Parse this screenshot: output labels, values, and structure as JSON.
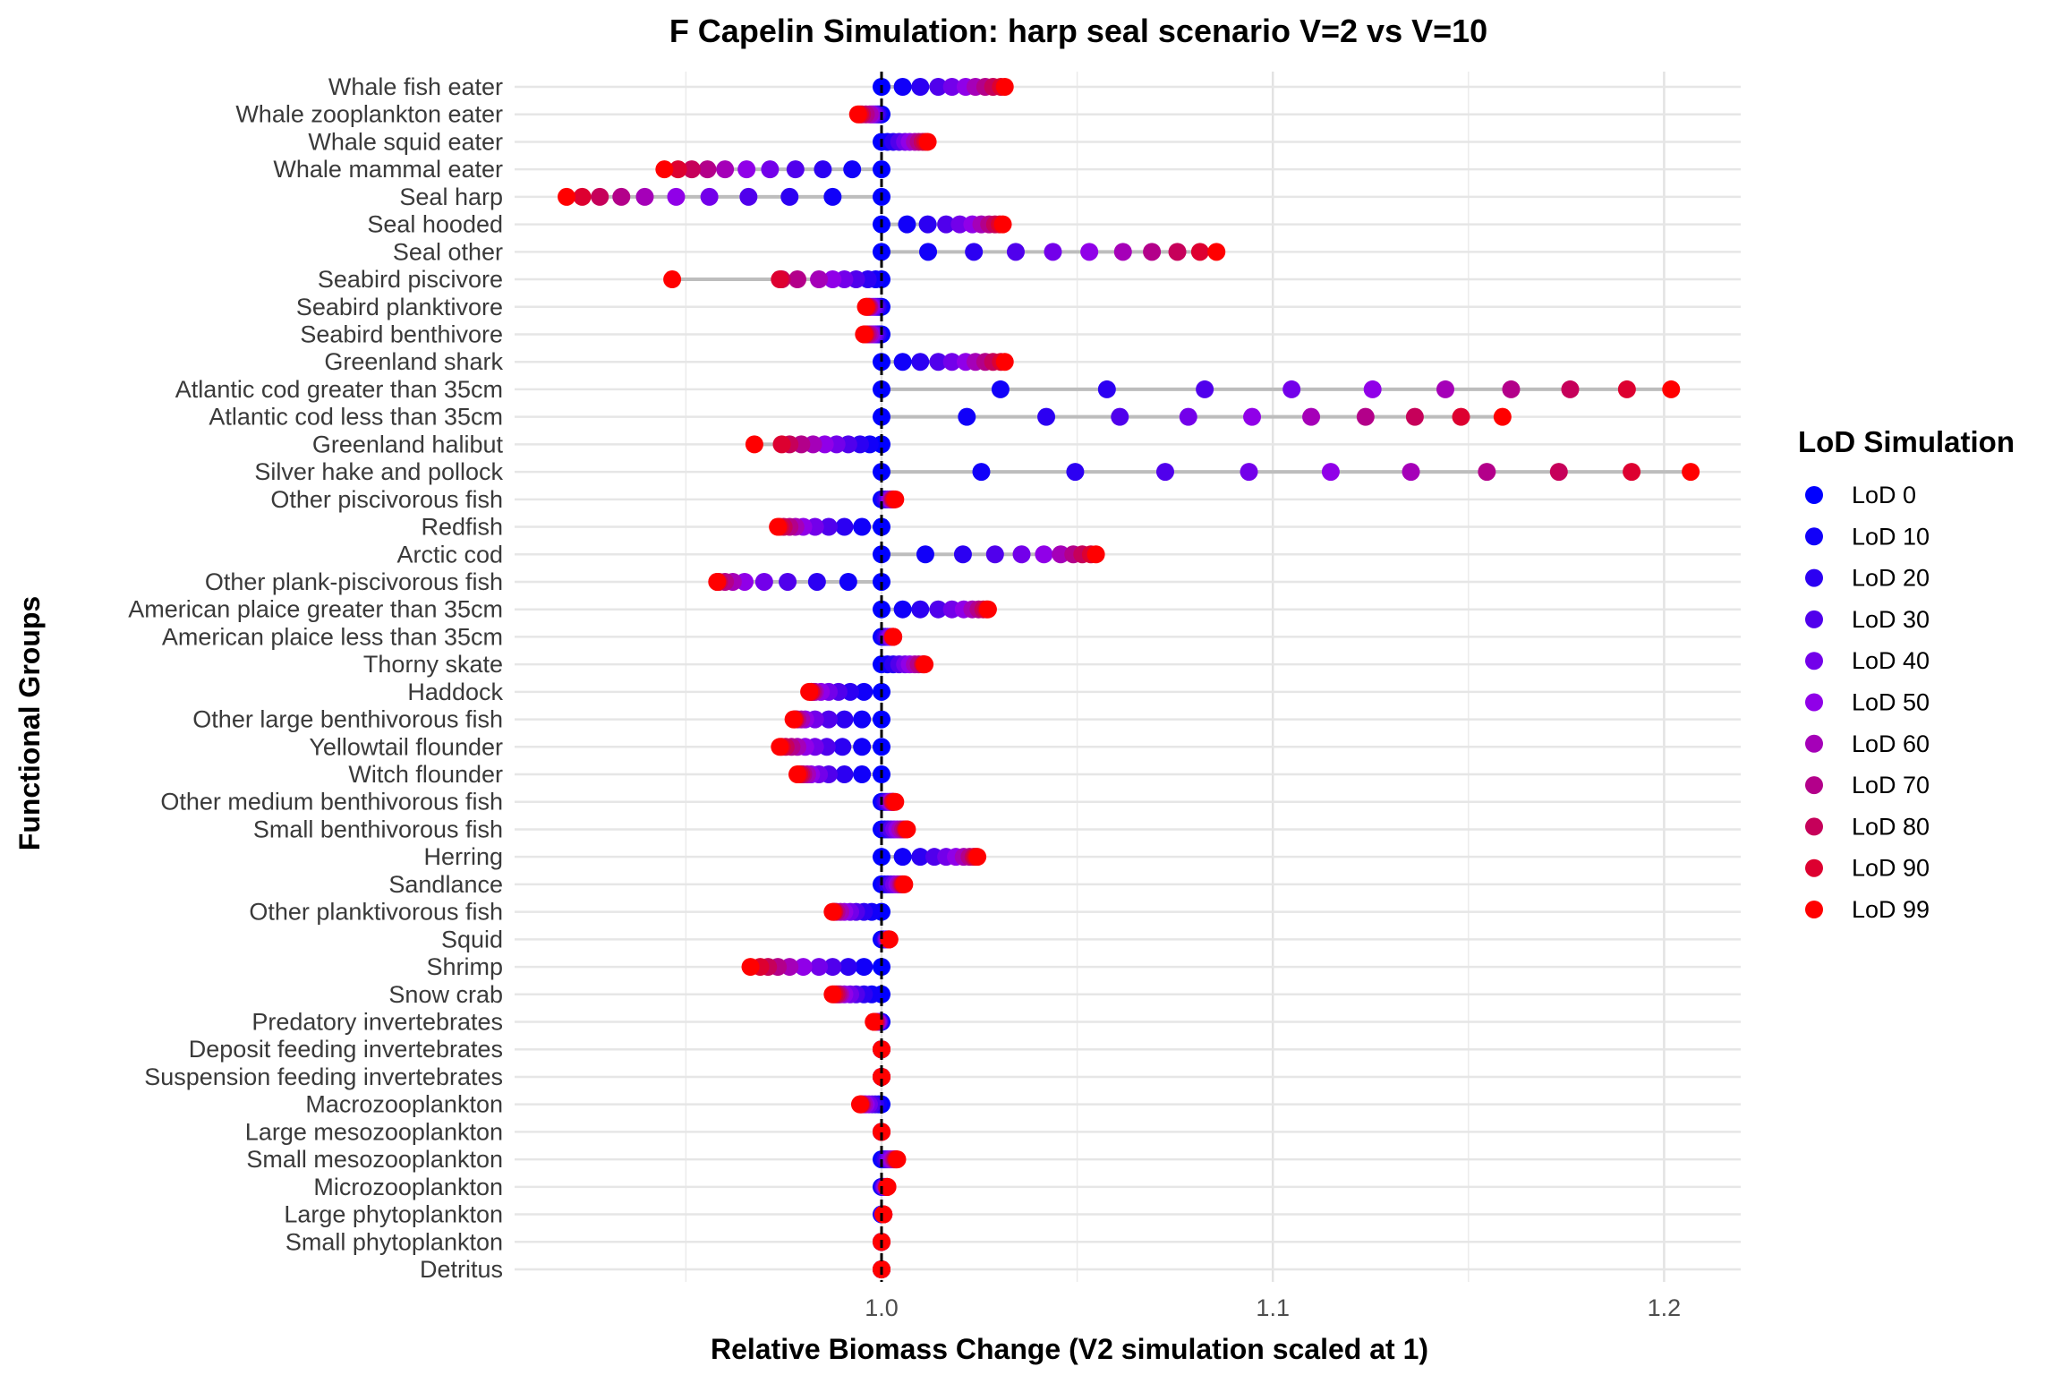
{
  "chart_data": {
    "type": "scatter",
    "title": "F Capelin Simulation: harp seal scenario V=2 vs V=10",
    "xlabel": "Relative Biomass Change (V2 simulation scaled at 1)",
    "ylabel": "Functional Groups",
    "xlim": [
      0.9,
      1.22
    ],
    "xticks": [
      1.0,
      1.1,
      1.2
    ],
    "xtick_labels": [
      "1.0",
      "1.1",
      "1.2"
    ],
    "reference_line_x": 1.0,
    "grid": true,
    "legend": {
      "title": "LoD Simulation",
      "placement": "right",
      "entries": [
        "LoD 0",
        "LoD 10",
        "LoD 20",
        "LoD 30",
        "LoD 40",
        "LoD 50",
        "LoD 60",
        "LoD 70",
        "LoD 80",
        "LoD 90",
        "LoD 99"
      ]
    },
    "series_colors": [
      "#0000ff",
      "#1100f9",
      "#2c00f2",
      "#5000ec",
      "#7300ea",
      "#9000e8",
      "#a500b8",
      "#b3008a",
      "#c6005a",
      "#dd0030",
      "#ff0000"
    ],
    "groups": [
      {
        "name": "Whale fish eater",
        "values": [
          1.0,
          1.0054,
          1.0099,
          1.0145,
          1.018,
          1.0215,
          1.024,
          1.0265,
          1.0285,
          1.0305,
          1.0315
        ]
      },
      {
        "name": "Whale zooplankton eater",
        "values": [
          1.0,
          0.9995,
          0.999,
          0.9985,
          0.998,
          0.9975,
          0.997,
          0.996,
          0.995,
          0.9945,
          0.994
        ]
      },
      {
        "name": "Whale squid eater",
        "values": [
          1.0,
          1.0015,
          1.003,
          1.0045,
          1.006,
          1.0072,
          1.0085,
          1.0095,
          1.0105,
          1.0112,
          1.0118
        ]
      },
      {
        "name": "Whale mammal eater",
        "values": [
          1.0,
          0.9925,
          0.985,
          0.978,
          0.9715,
          0.9655,
          0.96,
          0.9555,
          0.9515,
          0.948,
          0.9445
        ]
      },
      {
        "name": "Seal harp",
        "values": [
          1.0,
          0.9875,
          0.9765,
          0.966,
          0.956,
          0.9475,
          0.9395,
          0.9335,
          0.928,
          0.9235,
          0.9195
        ]
      },
      {
        "name": "Seal hooded",
        "values": [
          1.0,
          1.0065,
          1.0118,
          1.0165,
          1.02,
          1.0232,
          1.0255,
          1.0275,
          1.029,
          1.0302,
          1.031
        ]
      },
      {
        "name": "Seal other",
        "values": [
          1.0,
          1.0119,
          1.0236,
          1.0343,
          1.0438,
          1.0531,
          1.0617,
          1.0691,
          1.0756,
          1.0814,
          1.0856
        ]
      },
      {
        "name": "Seabird piscivore",
        "values": [
          1.0,
          0.9985,
          0.9965,
          0.9935,
          0.9905,
          0.9875,
          0.984,
          0.9785,
          0.9745,
          0.974,
          0.9465
        ]
      },
      {
        "name": "Seabird planktivore",
        "values": [
          1.0,
          0.9995,
          0.999,
          0.9985,
          0.998,
          0.9975,
          0.997,
          0.9968,
          0.9965,
          0.9962,
          0.996
        ]
      },
      {
        "name": "Seabird benthivore",
        "values": [
          1.0,
          0.9995,
          0.999,
          0.9985,
          0.998,
          0.9975,
          0.997,
          0.9965,
          0.996,
          0.9958,
          0.9955
        ]
      },
      {
        "name": "Greenland shark",
        "values": [
          1.0,
          1.0054,
          1.0099,
          1.0145,
          1.018,
          1.0215,
          1.024,
          1.0265,
          1.0285,
          1.0305,
          1.0315
        ]
      },
      {
        "name": "Atlantic cod greater than 35cm",
        "values": [
          1.0,
          1.0304,
          1.0576,
          1.0826,
          1.1048,
          1.1255,
          1.1441,
          1.1609,
          1.176,
          1.1905,
          1.2018
        ]
      },
      {
        "name": "Atlantic cod less than 35cm",
        "values": [
          1.0,
          1.0218,
          1.0421,
          1.0609,
          1.0784,
          1.0947,
          1.1098,
          1.1237,
          1.1363,
          1.1481,
          1.1587
        ]
      },
      {
        "name": "Greenland halibut",
        "values": [
          1.0,
          0.997,
          0.9945,
          0.9915,
          0.9885,
          0.9855,
          0.9825,
          0.9795,
          0.9765,
          0.9745,
          0.9675
        ]
      },
      {
        "name": "Silver hake and pollock",
        "values": [
          1.0,
          1.0255,
          1.0495,
          1.0725,
          1.0939,
          1.1148,
          1.1353,
          1.1547,
          1.1731,
          1.1917,
          1.2068
        ]
      },
      {
        "name": "Other piscivorous fish",
        "values": [
          1.0,
          1.0005,
          1.001,
          1.0015,
          1.002,
          1.0023,
          1.0026,
          1.0028,
          1.003,
          1.0032,
          1.0035
        ]
      },
      {
        "name": "Redfish",
        "values": [
          1.0,
          0.995,
          0.9905,
          0.9865,
          0.983,
          0.98,
          0.978,
          0.9765,
          0.975,
          0.974,
          0.9735
        ]
      },
      {
        "name": "Arctic cod",
        "values": [
          1.0,
          1.0112,
          1.0208,
          1.029,
          1.0358,
          1.0415,
          1.0458,
          1.049,
          1.0513,
          1.0535,
          1.0548
        ]
      },
      {
        "name": "Other plank-piscivorous fish",
        "values": [
          1.0,
          0.9915,
          0.9835,
          0.976,
          0.97,
          0.965,
          0.962,
          0.96,
          0.9585,
          0.958,
          0.958
        ]
      },
      {
        "name": "American plaice greater than 35cm",
        "values": [
          1.0,
          1.0054,
          1.0099,
          1.0145,
          1.018,
          1.021,
          1.0232,
          1.0248,
          1.026,
          1.0268,
          1.0272
        ]
      },
      {
        "name": "American plaice less than 35cm",
        "values": [
          1.0,
          1.0005,
          1.001,
          1.0015,
          1.002,
          1.0023,
          1.0026,
          1.0028,
          1.003,
          1.003,
          1.003
        ]
      },
      {
        "name": "Thorny skate",
        "values": [
          1.0,
          1.0015,
          1.003,
          1.0045,
          1.006,
          1.0072,
          1.0085,
          1.0095,
          1.0105,
          1.0108,
          1.011
        ]
      },
      {
        "name": "Haddock",
        "values": [
          1.0,
          0.9955,
          0.992,
          0.989,
          0.9865,
          0.9845,
          0.983,
          0.9825,
          0.982,
          0.982,
          0.9815
        ]
      },
      {
        "name": "Other large benthivorous fish",
        "values": [
          1.0,
          0.995,
          0.9905,
          0.9865,
          0.983,
          0.9805,
          0.9795,
          0.9785,
          0.978,
          0.9778,
          0.9775
        ]
      },
      {
        "name": "Yellowtail flounder",
        "values": [
          1.0,
          0.995,
          0.99,
          0.986,
          0.983,
          0.9805,
          0.9785,
          0.977,
          0.9755,
          0.9745,
          0.974
        ]
      },
      {
        "name": "Witch flounder",
        "values": [
          1.0,
          0.995,
          0.9905,
          0.9865,
          0.984,
          0.982,
          0.981,
          0.98,
          0.9795,
          0.979,
          0.9785
        ]
      },
      {
        "name": "Other medium benthivorous fish",
        "values": [
          1.0,
          1.0005,
          1.001,
          1.0015,
          1.002,
          1.0023,
          1.0026,
          1.0028,
          1.003,
          1.003,
          1.0035
        ]
      },
      {
        "name": "Small benthivorous fish",
        "values": [
          1.0,
          1.0008,
          1.0016,
          1.0024,
          1.0032,
          1.004,
          1.0048,
          1.0055,
          1.006,
          1.0063,
          1.0065
        ]
      },
      {
        "name": "Herring",
        "values": [
          1.0,
          1.0054,
          1.0099,
          1.0135,
          1.0165,
          1.019,
          1.021,
          1.0225,
          1.0235,
          1.024,
          1.0245
        ]
      },
      {
        "name": "Sandlance",
        "values": [
          1.0,
          1.0008,
          1.0016,
          1.0024,
          1.0032,
          1.004,
          1.0045,
          1.005,
          1.0053,
          1.0055,
          1.0058
        ]
      },
      {
        "name": "Other planktivorous fish",
        "values": [
          1.0,
          0.9975,
          0.9955,
          0.9935,
          0.992,
          0.9905,
          0.9895,
          0.9885,
          0.988,
          0.9878,
          0.9875
        ]
      },
      {
        "name": "Squid",
        "values": [
          1.0,
          1.0005,
          1.001,
          1.0012,
          1.0014,
          1.0016,
          1.0017,
          1.0018,
          1.0019,
          1.002,
          1.002
        ]
      },
      {
        "name": "Shrimp",
        "values": [
          1.0,
          0.9955,
          0.9915,
          0.9875,
          0.984,
          0.98,
          0.9765,
          0.9735,
          0.971,
          0.969,
          0.9665
        ]
      },
      {
        "name": "Snow crab",
        "values": [
          1.0,
          0.9975,
          0.9955,
          0.9935,
          0.992,
          0.9905,
          0.9895,
          0.989,
          0.9885,
          0.988,
          0.9875
        ]
      },
      {
        "name": "Predatory invertebrates",
        "values": [
          1.0,
          0.9998,
          0.9996,
          0.9994,
          0.9992,
          0.999,
          0.9988,
          0.9986,
          0.9984,
          0.9982,
          0.998
        ]
      },
      {
        "name": "Deposit feeding invertebrates",
        "values": [
          1.0,
          1.0,
          1.0,
          1.0,
          1.0,
          1.0,
          1.0,
          1.0,
          1.0,
          1.0,
          1.0
        ]
      },
      {
        "name": "Suspension feeding invertebrates",
        "values": [
          1.0,
          1.0,
          1.0,
          1.0,
          1.0,
          1.0,
          1.0,
          1.0,
          1.0,
          1.0,
          1.0
        ]
      },
      {
        "name": "Macrozooplankton",
        "values": [
          1.0,
          0.9992,
          0.9984,
          0.9976,
          0.9968,
          0.996,
          0.9955,
          0.995,
          0.9948,
          0.9946,
          0.9945
        ]
      },
      {
        "name": "Large mesozooplankton",
        "values": [
          1.0,
          1.0,
          1.0,
          1.0,
          1.0,
          1.0,
          1.0,
          1.0,
          1.0,
          1.0,
          1.0
        ]
      },
      {
        "name": "Small mesozooplankton",
        "values": [
          1.0,
          1.0005,
          1.001,
          1.0015,
          1.002,
          1.0025,
          1.003,
          1.0033,
          1.0036,
          1.0038,
          1.004
        ]
      },
      {
        "name": "Microzooplankton",
        "values": [
          1.0,
          1.0002,
          1.0004,
          1.0006,
          1.0008,
          1.001,
          1.0012,
          1.0013,
          1.0014,
          1.0015,
          1.0015
        ]
      },
      {
        "name": "Large phytoplankton",
        "values": [
          1.0,
          1.0001,
          1.0002,
          1.0003,
          1.0004,
          1.0005,
          1.0005,
          1.0005,
          1.0005,
          1.0005,
          1.0005
        ]
      },
      {
        "name": "Small phytoplankton",
        "values": [
          1.0,
          1.0,
          1.0,
          1.0,
          1.0,
          1.0,
          1.0,
          1.0,
          1.0,
          1.0,
          1.0
        ]
      },
      {
        "name": "Detritus",
        "values": [
          1.0,
          1.0,
          1.0,
          1.0,
          1.0,
          1.0,
          1.0,
          1.0,
          1.0,
          1.0,
          1.0
        ]
      }
    ]
  }
}
